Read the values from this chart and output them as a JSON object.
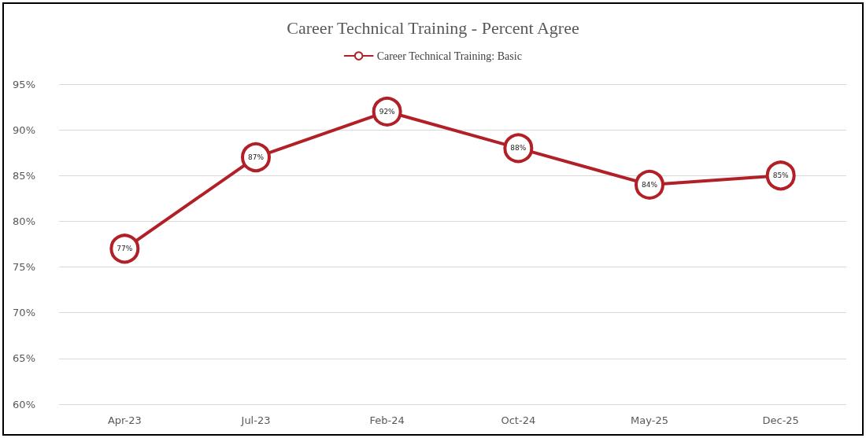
{
  "chart_data": {
    "type": "line",
    "title": "Career Technical Training - Percent Agree",
    "categories": [
      "Apr-23",
      "Jul-23",
      "Feb-24",
      "Oct-24",
      "May-25",
      "Dec-25"
    ],
    "series": [
      {
        "name": "Career Technical Training: Basic",
        "color": "#b22027",
        "values": [
          77,
          87,
          92,
          88,
          84,
          85
        ],
        "value_labels": [
          "77%",
          "87%",
          "92%",
          "88%",
          "84%",
          "85%"
        ]
      }
    ],
    "ylim": [
      60,
      95
    ],
    "yticks": [
      {
        "value": 60,
        "label": "60%"
      },
      {
        "value": 65,
        "label": "65%"
      },
      {
        "value": 70,
        "label": "70%"
      },
      {
        "value": 75,
        "label": "75%"
      },
      {
        "value": 80,
        "label": "80%"
      },
      {
        "value": 85,
        "label": "85%"
      },
      {
        "value": 90,
        "label": "90%"
      },
      {
        "value": 95,
        "label": "95%"
      }
    ],
    "grid": "y",
    "legend": "top",
    "marker": "circle",
    "line_style": "solid"
  }
}
